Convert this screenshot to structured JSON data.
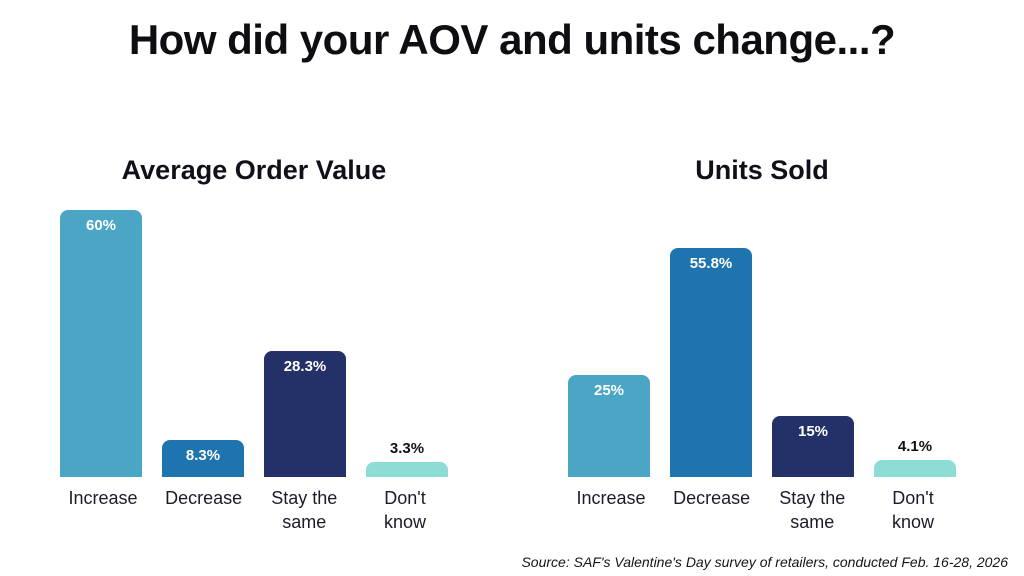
{
  "title": "How did your AOV and units change...?",
  "source": "Source: SAF's Valentine's Day survey of retailers, conducted Feb. 16-28, 2026",
  "chart_data": [
    {
      "type": "bar",
      "title": "Average Order Value",
      "categories": [
        "Increase",
        "Decrease",
        "Stay the same",
        "Don't know"
      ],
      "values": [
        60,
        8.3,
        28.3,
        3.3
      ],
      "labels": [
        "60%",
        "8.3%",
        "28.3%",
        "3.3%"
      ],
      "colors": [
        "#4BA6C6",
        "#1E74AE",
        "#233168",
        "#8EDCD6"
      ],
      "label_inside": [
        true,
        true,
        true,
        false
      ],
      "xlabel": "",
      "ylabel": "",
      "grid": false,
      "legend": "none"
    },
    {
      "type": "bar",
      "title": "Units Sold",
      "categories": [
        "Increase",
        "Decrease",
        "Stay the same",
        "Don't know"
      ],
      "values": [
        25,
        55.8,
        15,
        4.1
      ],
      "labels": [
        "25%",
        "55.8%",
        "15%",
        "4.1%"
      ],
      "colors": [
        "#4BA6C6",
        "#1E74AE",
        "#233168",
        "#8EDCD6"
      ],
      "label_inside": [
        true,
        true,
        true,
        false
      ],
      "xlabel": "",
      "ylabel": "",
      "grid": false,
      "legend": "none"
    }
  ]
}
